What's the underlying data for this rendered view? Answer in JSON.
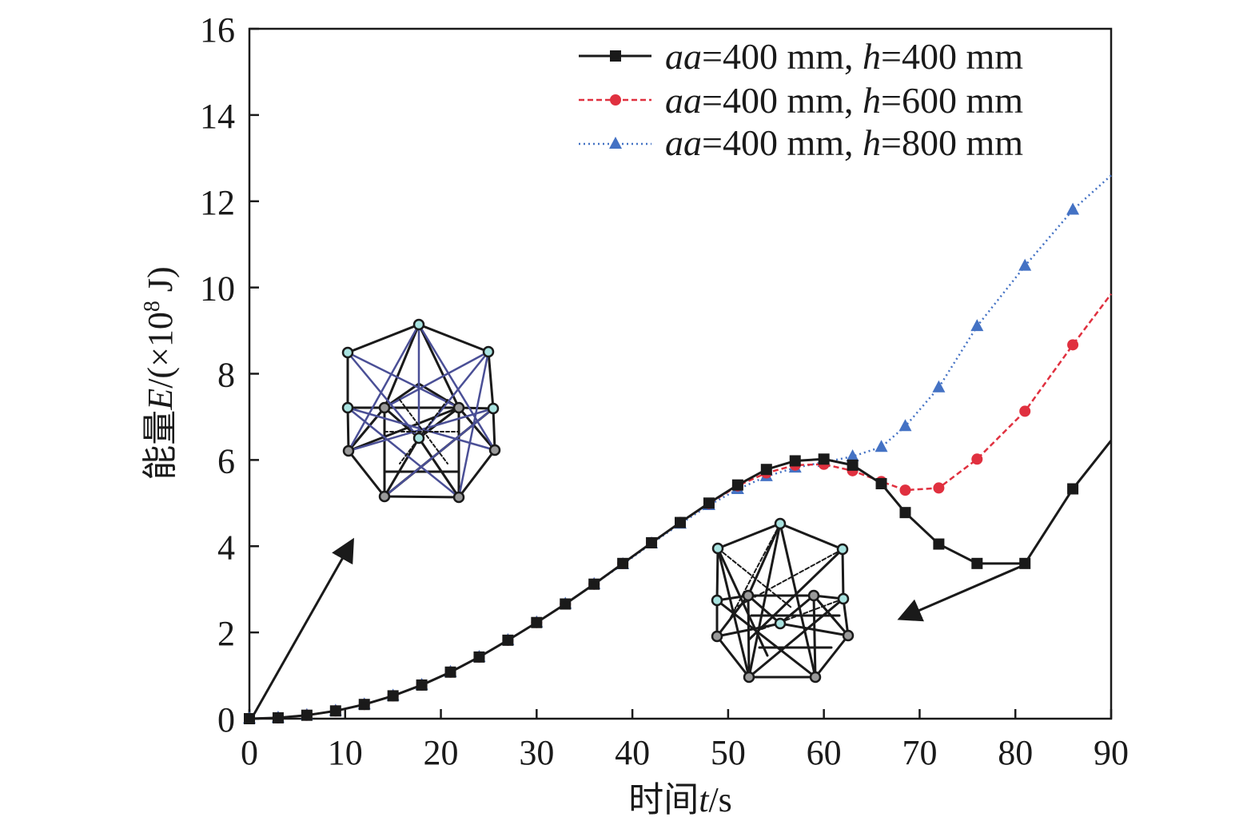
{
  "chart_data": {
    "type": "line",
    "xlabel": {
      "prefix": "时间",
      "var": "t",
      "suffix": "/s"
    },
    "ylabel": {
      "prefix": "能量",
      "var": "E",
      "mid": "/(×10",
      "sup": "8",
      "suffix": " J)"
    },
    "xlim": [
      0,
      90
    ],
    "ylim": [
      0,
      16
    ],
    "xticks": [
      0,
      10,
      20,
      30,
      40,
      50,
      60,
      70,
      80,
      90
    ],
    "yticks": [
      0,
      2,
      4,
      6,
      8,
      10,
      12,
      14,
      16
    ],
    "xtick_labels": [
      "0",
      "10",
      "20",
      "30",
      "40",
      "50",
      "60",
      "70",
      "80",
      "90"
    ],
    "ytick_labels": [
      "0",
      "2",
      "4",
      "6",
      "8",
      "10",
      "12",
      "14",
      "16"
    ],
    "legend_position": "top-right",
    "series": [
      {
        "name": "aa=400 mm, h=400 mm",
        "legend": {
          "v1": "aa",
          "t1": "=400 mm, ",
          "v2": "h",
          "t2": "=400 mm"
        },
        "color": "#1a1a1a",
        "line_style": "solid",
        "marker": "square",
        "x": [
          0,
          3,
          6,
          9,
          12,
          15,
          18,
          21,
          24,
          27,
          30,
          33,
          36,
          39,
          42,
          45,
          48,
          51,
          54,
          57,
          60,
          63,
          66,
          68.5,
          72,
          76,
          81,
          86
        ],
        "y": [
          0,
          0.02,
          0.08,
          0.18,
          0.33,
          0.53,
          0.78,
          1.08,
          1.43,
          1.82,
          2.23,
          2.66,
          3.12,
          3.6,
          4.08,
          4.55,
          5.0,
          5.42,
          5.78,
          5.98,
          6.02,
          5.88,
          5.45,
          4.78,
          4.05,
          3.6,
          3.6,
          5.33
        ],
        "line_x": [
          0,
          3,
          6,
          9,
          12,
          15,
          18,
          21,
          24,
          27,
          30,
          33,
          36,
          39,
          42,
          45,
          48,
          51,
          54,
          57,
          60,
          63,
          66,
          68.5,
          72,
          76,
          81,
          86,
          90
        ],
        "line_y": [
          0,
          0.02,
          0.08,
          0.18,
          0.33,
          0.53,
          0.78,
          1.08,
          1.43,
          1.82,
          2.23,
          2.66,
          3.12,
          3.6,
          4.08,
          4.55,
          5.0,
          5.42,
          5.78,
          5.98,
          6.02,
          5.88,
          5.45,
          4.78,
          4.05,
          3.6,
          3.6,
          5.33,
          6.45
        ]
      },
      {
        "name": "aa=400 mm, h=600 mm",
        "legend": {
          "v1": "aa",
          "t1": "=400 mm, ",
          "v2": "h",
          "t2": "=600 mm"
        },
        "color": "#e0303f",
        "line_style": "dashed",
        "marker": "circle",
        "x": [
          0,
          3,
          6,
          9,
          12,
          15,
          18,
          21,
          24,
          27,
          30,
          33,
          36,
          39,
          42,
          45,
          48,
          51,
          54,
          57,
          60,
          63,
          66,
          68.5,
          72,
          76,
          81,
          86
        ],
        "y": [
          0,
          0.02,
          0.08,
          0.18,
          0.33,
          0.53,
          0.78,
          1.08,
          1.43,
          1.82,
          2.23,
          2.66,
          3.12,
          3.6,
          4.08,
          4.55,
          4.99,
          5.4,
          5.7,
          5.88,
          5.9,
          5.75,
          5.5,
          5.3,
          5.35,
          6.02,
          7.13,
          8.67
        ],
        "line_x": [
          0,
          3,
          6,
          9,
          12,
          15,
          18,
          21,
          24,
          27,
          30,
          33,
          36,
          39,
          42,
          45,
          48,
          51,
          54,
          57,
          60,
          63,
          66,
          68.5,
          72,
          76,
          81,
          86,
          90
        ],
        "line_y": [
          0,
          0.02,
          0.08,
          0.18,
          0.33,
          0.53,
          0.78,
          1.08,
          1.43,
          1.82,
          2.23,
          2.66,
          3.12,
          3.6,
          4.08,
          4.55,
          4.99,
          5.4,
          5.7,
          5.88,
          5.9,
          5.75,
          5.5,
          5.3,
          5.35,
          6.02,
          7.13,
          8.67,
          9.85
        ]
      },
      {
        "name": "aa=400 mm, h=800 mm",
        "legend": {
          "v1": "aa",
          "t1": "=400 mm, ",
          "v2": "h",
          "t2": "=800 mm"
        },
        "color": "#4472c4",
        "line_style": "dotted",
        "marker": "triangle",
        "x": [
          0,
          3,
          6,
          9,
          12,
          15,
          18,
          21,
          24,
          27,
          30,
          33,
          36,
          39,
          42,
          45,
          48,
          51,
          54,
          57,
          60,
          63,
          66,
          68.5,
          72,
          76,
          81,
          86
        ],
        "y": [
          0,
          0.02,
          0.08,
          0.18,
          0.33,
          0.53,
          0.78,
          1.08,
          1.43,
          1.82,
          2.23,
          2.66,
          3.12,
          3.58,
          4.06,
          4.52,
          4.95,
          5.32,
          5.62,
          5.82,
          5.95,
          6.08,
          6.3,
          6.78,
          7.68,
          9.1,
          10.5,
          11.8
        ],
        "line_x": [
          0,
          3,
          6,
          9,
          12,
          15,
          18,
          21,
          24,
          27,
          30,
          33,
          36,
          39,
          42,
          45,
          48,
          51,
          54,
          57,
          60,
          63,
          66,
          68.5,
          72,
          76,
          81,
          86,
          90
        ],
        "line_y": [
          0,
          0.02,
          0.08,
          0.18,
          0.33,
          0.53,
          0.78,
          1.08,
          1.43,
          1.82,
          2.23,
          2.66,
          3.12,
          3.58,
          4.06,
          4.52,
          4.95,
          5.32,
          5.62,
          5.82,
          5.95,
          6.08,
          6.3,
          6.78,
          7.68,
          9.1,
          10.5,
          11.8,
          12.6
        ]
      }
    ],
    "annotations": [
      {
        "name": "intact-structure-inset",
        "description_kind": "structure-diagram",
        "points_to": [
          0,
          0
        ]
      },
      {
        "name": "collapsed-structure-inset",
        "description_kind": "structure-diagram",
        "points_to": [
          81,
          3.6
        ]
      }
    ]
  }
}
